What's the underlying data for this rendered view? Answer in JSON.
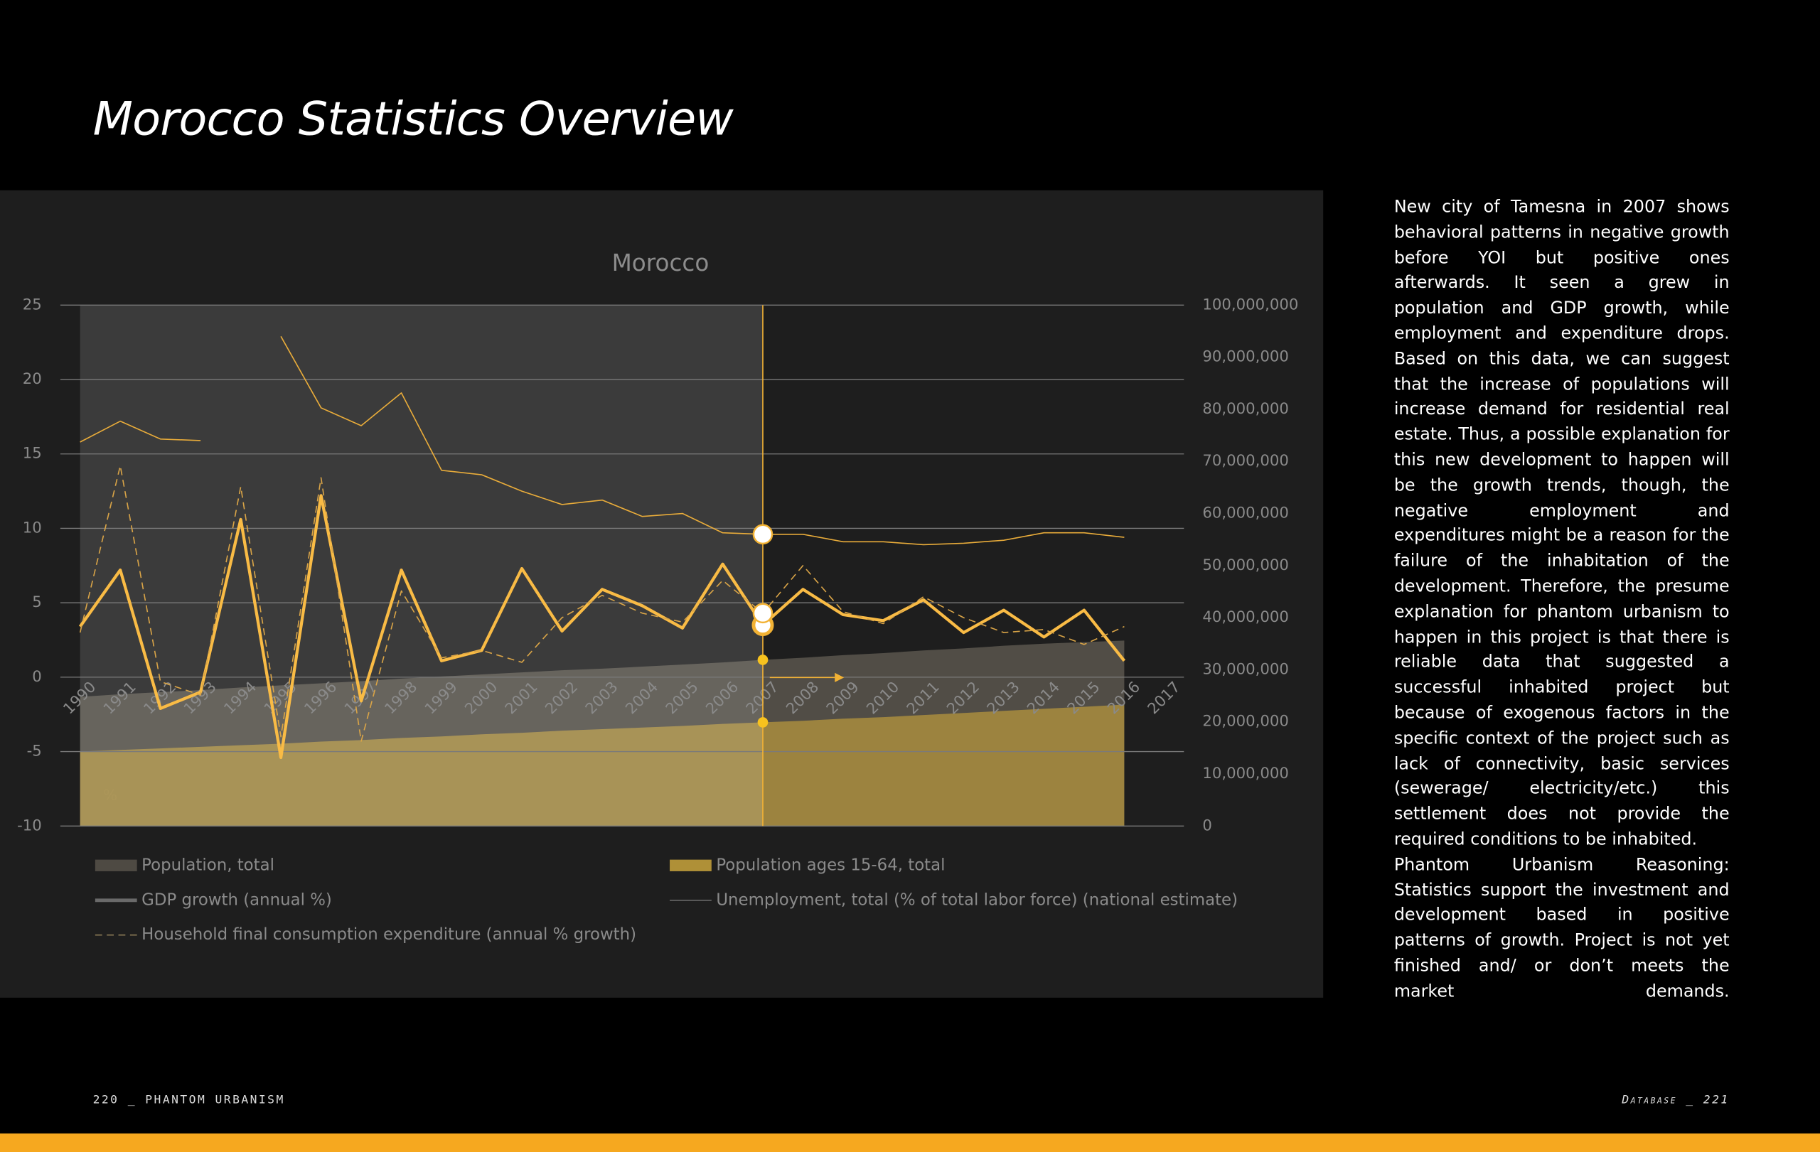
{
  "header": {
    "title": "Morocco Statistics Overview"
  },
  "chart_data": {
    "type": "line",
    "title": "Morocco",
    "y_unit": "%",
    "categories": [
      "1990",
      "1991",
      "1992",
      "1993",
      "1994",
      "1995",
      "1996",
      "1997",
      "1998",
      "1999",
      "2000",
      "2001",
      "2002",
      "2003",
      "2004",
      "2005",
      "2006",
      "2007",
      "2008",
      "2009",
      "2010",
      "2011",
      "2012",
      "2013",
      "2014",
      "2015",
      "2016",
      "2017"
    ],
    "ylim": [
      -10,
      25
    ],
    "yticks": [
      25,
      20,
      15,
      10,
      5,
      0,
      -5,
      -10
    ],
    "y2lim": [
      0,
      100000000
    ],
    "y2ticks": [
      {
        "value": 100000000,
        "label": "100,000,000"
      },
      {
        "value": 90000000,
        "label": "90,000,000"
      },
      {
        "value": 80000000,
        "label": "80,000,000"
      },
      {
        "value": 70000000,
        "label": "70,000,000"
      },
      {
        "value": 60000000,
        "label": "60,000,000"
      },
      {
        "value": 50000000,
        "label": "50,000,000"
      },
      {
        "value": 40000000,
        "label": "40,000,000"
      },
      {
        "value": 30000000,
        "label": "30,000,000"
      },
      {
        "value": 20000000,
        "label": "20,000,000"
      },
      {
        "value": 10000000,
        "label": "10,000,000"
      },
      0
    ],
    "grid": true,
    "highlight": {
      "from": "1990",
      "to": "2007"
    },
    "series": [
      {
        "name": "Population, total",
        "kind": "area",
        "axis": "y2",
        "color": "#57524a",
        "values": [
          24800000,
          25300000,
          25700000,
          26100000,
          26600000,
          27000000,
          27400000,
          27800000,
          28300000,
          28700000,
          29100000,
          29500000,
          29900000,
          30200000,
          30600000,
          31000000,
          31400000,
          31900000,
          32300000,
          32800000,
          33200000,
          33700000,
          34100000,
          34600000,
          35000000,
          35300000,
          35600000,
          null
        ]
      },
      {
        "name": "Population ages 15-64, total",
        "kind": "area",
        "axis": "y2",
        "color": "#c9a43c",
        "values": [
          14300000,
          14600000,
          14900000,
          15200000,
          15500000,
          15800000,
          16200000,
          16500000,
          16900000,
          17200000,
          17600000,
          17900000,
          18300000,
          18600000,
          18900000,
          19200000,
          19600000,
          19900000,
          20200000,
          20600000,
          20900000,
          21300000,
          21700000,
          22100000,
          22500000,
          22900000,
          23300000,
          null
        ]
      },
      {
        "name": "GDP growth (annual %)",
        "kind": "line",
        "color": "#f9bb45",
        "width": 2.6,
        "values": [
          3.4,
          7.2,
          -2.1,
          -1.0,
          10.6,
          -5.4,
          12.2,
          -1.6,
          7.2,
          1.1,
          1.8,
          7.3,
          3.1,
          5.9,
          4.8,
          3.3,
          7.6,
          3.5,
          5.9,
          4.2,
          3.8,
          5.2,
          3.0,
          4.5,
          2.7,
          4.5,
          1.1,
          null
        ]
      },
      {
        "name": "Unemployment, total (% of total labor force) (national estimate)",
        "kind": "line",
        "color": "#e9ac3a",
        "width": 1,
        "values": [
          15.8,
          17.2,
          16.0,
          15.9,
          null,
          22.9,
          18.1,
          16.9,
          19.1,
          13.9,
          13.6,
          12.5,
          11.6,
          11.9,
          10.8,
          11.0,
          9.7,
          9.6,
          9.6,
          9.1,
          9.1,
          8.9,
          9.0,
          9.2,
          9.7,
          9.7,
          9.4,
          null
        ]
      },
      {
        "name": "Household final consumption expenditure (annual % growth)",
        "kind": "dashed",
        "color": "#d9a447",
        "width": 1,
        "values": [
          3.0,
          14.2,
          -0.3,
          -1.2,
          12.8,
          -4.0,
          13.4,
          -4.3,
          5.8,
          1.3,
          1.8,
          1.0,
          4.0,
          5.5,
          4.3,
          3.7,
          6.5,
          4.3,
          7.5,
          4.4,
          3.6,
          5.4,
          4.0,
          3.0,
          3.2,
          2.2,
          3.4,
          null
        ]
      }
    ]
  },
  "text": {
    "paragraphs": [
      "New city of Tamesna in 2007 shows behavioral patterns in negative growth before YOI but positive ones afterwards. It seen a grew in population and GDP growth, while employment and expenditure drops. Based on this data, we can suggest that the increase of populations will increase demand for residential real estate. Thus, a possible explanation for this new development to happen will be the growth trends, though, the negative employment and expenditures might be a reason for the failure of the inhabitation of the development. Therefore, the presume explanation for phantom urbanism to happen in this project is that there is reliable data that suggested a successful inhabited project but because of exogenous factors in the specific context of the project such as lack of connectivity, basic services (sewerage/ electricity/etc.) this settlement does not provide the required conditions to be inhabited.",
      "Phantom Urbanism Reasoning: Statistics support the investment and development based in positive patterns of growth. Project is not yet finished and/ or don’t meets the market demands."
    ]
  },
  "footer": {
    "left": "220 _ PHANTOM URBANISM",
    "right": "Database _ 221"
  }
}
